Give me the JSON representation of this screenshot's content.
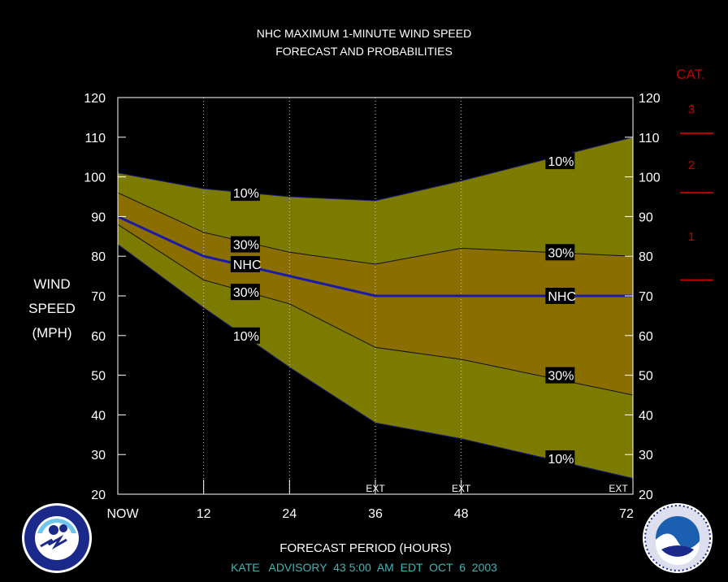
{
  "title_line1": "NHC MAXIMUM 1-MINUTE WIND SPEED",
  "title_line2": "FORECAST AND PROBABILITIES",
  "ylabel_lines": [
    "WIND",
    "SPEED",
    "(MPH)"
  ],
  "xlabel": "FORECAST PERIOD (HOURS)",
  "footer": "KATE   ADVISORY  43 5:00  AM  EDT  OCT  6  2003",
  "ext_label": "EXT",
  "cat_title": "CAT.",
  "categories": [
    {
      "label": "3",
      "threshold": 111
    },
    {
      "label": "2",
      "threshold": 96
    },
    {
      "label": "1",
      "threshold": 74
    }
  ],
  "colors": {
    "background": "#000000",
    "outer_band": "#7b7b00",
    "inner_band": "#8a6e00",
    "nhc_line": "#1a1aa8",
    "cat_color": "#c00000",
    "footer_color": "#3fb5b5"
  },
  "chart_data": {
    "type": "area",
    "x": [
      0,
      12,
      24,
      36,
      48,
      72
    ],
    "x_tick_labels": [
      "NOW",
      "12",
      "24",
      "36",
      "48",
      "72"
    ],
    "xlim": [
      0,
      72
    ],
    "ylim": [
      20,
      120
    ],
    "y_ticks": [
      20,
      30,
      40,
      50,
      60,
      70,
      80,
      90,
      100,
      110,
      120
    ],
    "ext_hours": [
      36,
      48,
      72
    ],
    "series": [
      {
        "name": "10%",
        "bound": "upper",
        "values": [
          101,
          97,
          95,
          94,
          99,
          110
        ]
      },
      {
        "name": "30%",
        "bound": "upper",
        "values": [
          96,
          86,
          81,
          78,
          82,
          80
        ]
      },
      {
        "name": "NHC",
        "values": [
          90,
          80,
          75,
          70,
          70,
          70
        ]
      },
      {
        "name": "30%",
        "bound": "lower",
        "values": [
          88,
          74,
          68,
          57,
          54,
          45
        ]
      },
      {
        "name": "10%",
        "bound": "lower",
        "values": [
          83,
          67,
          52,
          38,
          34,
          24
        ]
      }
    ],
    "series_labels": [
      {
        "text": "10%",
        "x": 16,
        "y": 96
      },
      {
        "text": "30%",
        "x": 16,
        "y": 83
      },
      {
        "text": "NHC",
        "x": 16,
        "y": 78
      },
      {
        "text": "30%",
        "x": 16,
        "y": 71
      },
      {
        "text": "10%",
        "x": 16,
        "y": 60
      },
      {
        "text": "10%",
        "x": 60,
        "y": 104
      },
      {
        "text": "30%",
        "x": 60,
        "y": 81
      },
      {
        "text": "NHC",
        "x": 60,
        "y": 70
      },
      {
        "text": "30%",
        "x": 60,
        "y": 50
      },
      {
        "text": "10%",
        "x": 60,
        "y": 29
      }
    ]
  }
}
